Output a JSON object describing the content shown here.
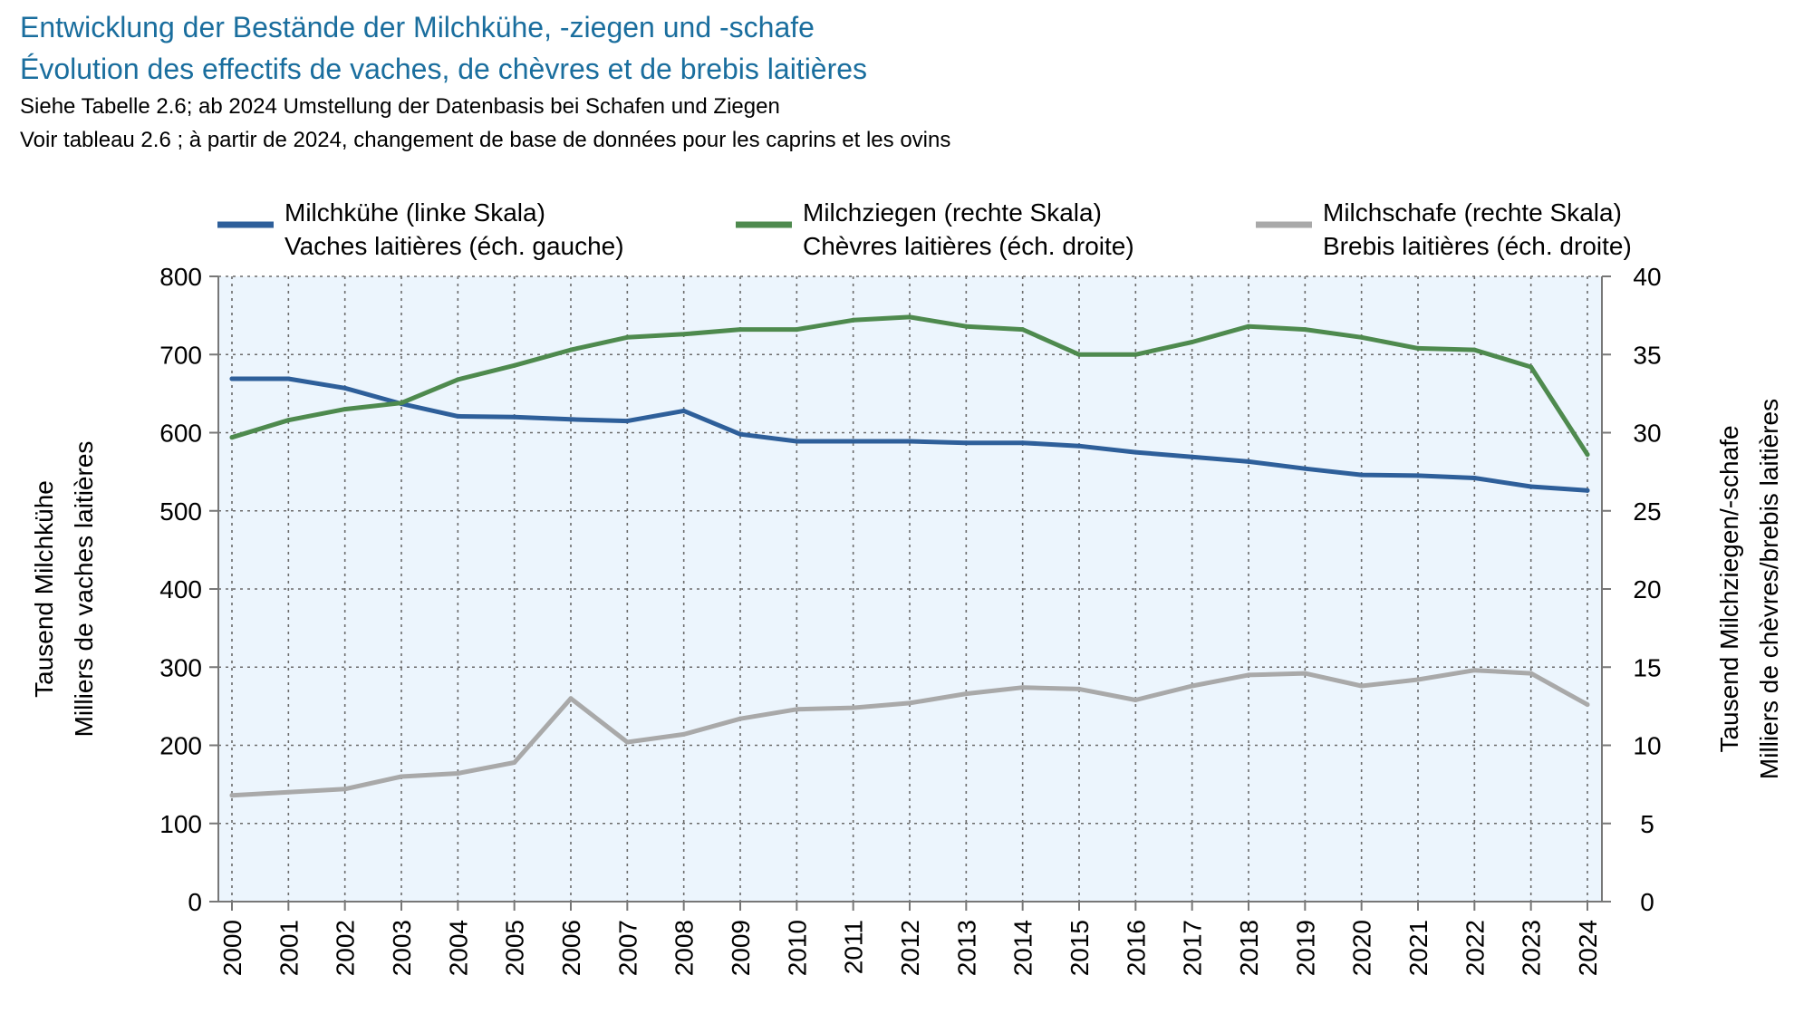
{
  "header": {
    "title_de": "Entwicklung der Bestände der Milchkühe, -ziegen und -schafe",
    "title_fr": "Évolution des effectifs de vaches, de chèvres et de brebis laitières",
    "note_de": "Siehe Tabelle 2.6; ab 2024 Umstellung der Datenbasis bei Schafen und Ziegen",
    "note_fr": "Voir tableau 2.6 ; à partir de 2024, changement de base de données pour les caprins et les ovins"
  },
  "chart_data": {
    "type": "line",
    "x": [
      2000,
      2001,
      2002,
      2003,
      2004,
      2005,
      2006,
      2007,
      2008,
      2009,
      2010,
      2011,
      2012,
      2013,
      2014,
      2015,
      2016,
      2017,
      2018,
      2019,
      2020,
      2021,
      2022,
      2023,
      2024
    ],
    "y_left": {
      "label_de": "Tausend Milchkühe",
      "label_fr": "Milliers de vaches laitières",
      "lim": [
        0,
        800
      ],
      "ticks": [
        0,
        100,
        200,
        300,
        400,
        500,
        600,
        700,
        800
      ]
    },
    "y_right": {
      "label_de": "Tausend Milchziegen/-schafe",
      "label_fr": "Milliers de chèvres/brebis laitières",
      "lim": [
        0,
        40
      ],
      "ticks": [
        0,
        5,
        10,
        15,
        20,
        25,
        30,
        35,
        40
      ]
    },
    "grid": true,
    "legend_position": "top",
    "series": [
      {
        "name_de": "Milchkühe (linke Skala)",
        "name_fr": "Vaches laitières (éch. gauche)",
        "axis": "left",
        "color": "#2e5f9a",
        "values": [
          669,
          669,
          657,
          637,
          621,
          620,
          617,
          615,
          628,
          598,
          589,
          589,
          589,
          587,
          587,
          583,
          575,
          569,
          563,
          554,
          546,
          545,
          542,
          531,
          526
        ]
      },
      {
        "name_de": "Milchziegen (rechte Skala)",
        "name_fr": "Chèvres laitières (éch. droite)",
        "axis": "right",
        "color": "#4e8a4e",
        "values": [
          29.7,
          30.8,
          31.5,
          31.9,
          33.4,
          34.3,
          35.3,
          36.1,
          36.3,
          36.6,
          36.6,
          37.2,
          37.4,
          36.8,
          36.6,
          35.0,
          35.0,
          35.8,
          36.8,
          36.6,
          36.1,
          35.4,
          35.3,
          34.2,
          28.6
        ]
      },
      {
        "name_de": "Milchschafe (rechte Skala)",
        "name_fr": "Brebis laitières (éch. droite)",
        "axis": "right",
        "color": "#a9a9a9",
        "values": [
          6.8,
          7.0,
          7.2,
          8.0,
          8.2,
          8.9,
          13.0,
          10.2,
          10.7,
          11.7,
          12.3,
          12.4,
          12.7,
          13.3,
          13.7,
          13.6,
          12.9,
          13.8,
          14.5,
          14.6,
          13.8,
          14.2,
          14.8,
          14.6,
          12.6
        ]
      }
    ]
  }
}
